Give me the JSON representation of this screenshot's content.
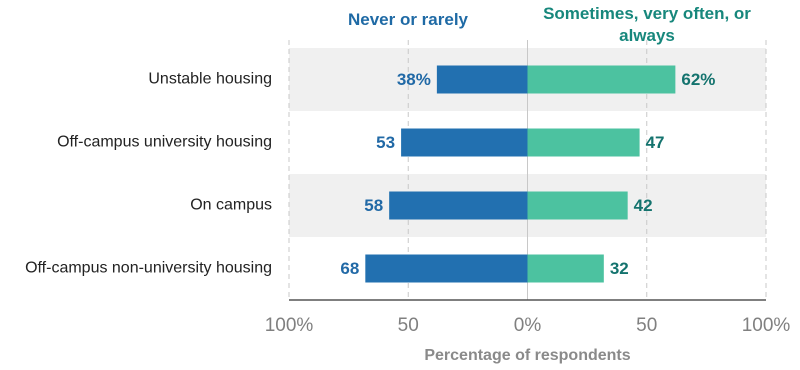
{
  "chart_data": {
    "type": "diverging-bar",
    "categories": [
      "Unstable housing",
      "Off-campus university housing",
      "On campus",
      "Off-campus non-university housing"
    ],
    "series": [
      {
        "name": "Never or rarely",
        "color": "#2270b0",
        "values": [
          38,
          53,
          58,
          68
        ],
        "value_labels": [
          "38%",
          "53",
          "58",
          "68"
        ]
      },
      {
        "name": "Sometimes, very often, or always",
        "color": "#4cc2a0",
        "values": [
          62,
          47,
          42,
          32
        ],
        "value_labels": [
          "62%",
          "47",
          "42",
          "32"
        ]
      }
    ],
    "xlim": [
      -100,
      100
    ],
    "xticks": [
      {
        "value": -100,
        "label": "100%"
      },
      {
        "value": -50,
        "label": "50"
      },
      {
        "value": 0,
        "label": "0%"
      },
      {
        "value": 50,
        "label": "50"
      },
      {
        "value": 100,
        "label": "100%"
      }
    ],
    "xlabel": "Percentage of respondents",
    "grid": true
  }
}
